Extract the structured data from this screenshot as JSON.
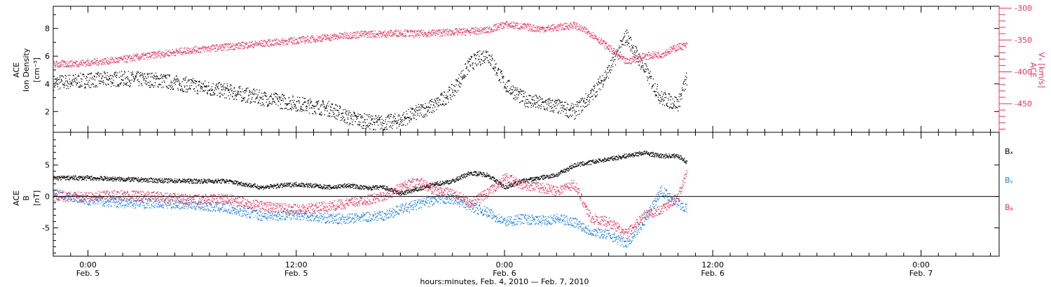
{
  "chart_data": [
    {
      "panel": "ion-density-and-velocity",
      "type": "scatter",
      "title": "",
      "ylabel_left": [
        "ACE",
        "Ion Density",
        "[cm⁻³]"
      ],
      "ylabel_right": [
        "ACE",
        "Vₓ [km/s]"
      ],
      "ylim_left": [
        0.5,
        9.6
      ],
      "yticks_left": [
        2,
        4,
        6,
        8
      ],
      "ylim_right": [
        -495,
        -297
      ],
      "yticks_right": [
        -300,
        -350,
        -400,
        -450
      ],
      "grid": false,
      "series": [
        {
          "name": "",
          "axis": "left",
          "color": "#000000",
          "x": [
            -4,
            0,
            4,
            8,
            12,
            16,
            20,
            24,
            28,
            30,
            32,
            34,
            36,
            38,
            40,
            42,
            44,
            46,
            48,
            50,
            52,
            54,
            56,
            58,
            60,
            62,
            64,
            66,
            68,
            69
          ],
          "y": [
            4.1,
            4.3,
            4.4,
            4.3,
            3.9,
            3.5,
            3.0,
            2.6,
            2.2,
            1.6,
            1.3,
            1.2,
            1.4,
            2.0,
            2.5,
            3.5,
            5.5,
            6.2,
            4.0,
            3.0,
            2.6,
            2.4,
            2.0,
            3.2,
            5.0,
            7.5,
            5.2,
            3.0,
            2.6,
            4.5
          ]
        },
        {
          "name": "",
          "axis": "right",
          "color": "#e0335a",
          "x": [
            -4,
            0,
            4,
            8,
            12,
            16,
            20,
            24,
            28,
            30,
            32,
            34,
            36,
            38,
            40,
            42,
            44,
            46,
            48,
            50,
            52,
            54,
            56,
            58,
            60,
            62,
            64,
            66,
            68,
            69
          ],
          "y": [
            -388,
            -385,
            -380,
            -372,
            -365,
            -360,
            -355,
            -350,
            -345,
            -342,
            -340,
            -340,
            -338,
            -340,
            -338,
            -337,
            -336,
            -334,
            -325,
            -328,
            -332,
            -330,
            -326,
            -340,
            -362,
            -384,
            -375,
            -372,
            -360,
            -358
          ]
        }
      ]
    },
    {
      "panel": "magnetic-field-components",
      "type": "scatter",
      "title": "",
      "ylabel": [
        "ACE",
        "B",
        "[nT]"
      ],
      "ylim": [
        -9.5,
        10.2
      ],
      "yticks": [
        5,
        0,
        -5
      ],
      "zero_line": true,
      "grid": false,
      "x": [
        -4,
        0,
        4,
        8,
        12,
        16,
        20,
        24,
        28,
        30,
        32,
        34,
        36,
        38,
        40,
        42,
        44,
        46,
        48,
        50,
        52,
        54,
        56,
        58,
        60,
        62,
        64,
        66,
        68,
        69
      ],
      "series": [
        {
          "name": "Bₓ",
          "color": "#000000",
          "values": [
            3.0,
            3.0,
            2.8,
            2.6,
            2.5,
            2.5,
            1.5,
            2.0,
            1.5,
            1.8,
            1.4,
            1.5,
            0.5,
            1.2,
            2.0,
            2.5,
            3.8,
            3.5,
            1.5,
            2.5,
            3.0,
            3.5,
            5.0,
            5.5,
            6.0,
            6.5,
            7.0,
            6.5,
            6.5,
            5.5
          ]
        },
        {
          "name": "Bᵧ",
          "color": "#1f7fd6",
          "values": [
            0.5,
            -0.5,
            -1.0,
            -1.0,
            -1.2,
            -1.8,
            -3.0,
            -2.8,
            -3.5,
            -3.5,
            -3.2,
            -3.0,
            -2.0,
            -1.2,
            -0.5,
            -0.3,
            -1.5,
            -2.5,
            -4.0,
            -3.5,
            -3.8,
            -3.5,
            -4.0,
            -5.5,
            -6.0,
            -7.5,
            -4.0,
            1.0,
            -1.0,
            -2.0
          ]
        },
        {
          "name": "Bᵩ",
          "color": "#e0335a",
          "values": [
            0.0,
            0.0,
            0.3,
            0.0,
            -0.5,
            -0.3,
            -1.5,
            -2.0,
            -1.5,
            -1.0,
            -0.5,
            0.0,
            1.5,
            2.5,
            1.0,
            0.5,
            -1.0,
            0.5,
            3.0,
            2.0,
            1.5,
            1.0,
            2.0,
            -3.5,
            -4.0,
            -6.0,
            -3.0,
            -2.0,
            0.0,
            4.0
          ]
        }
      ]
    }
  ],
  "time_axis": {
    "xlim": [
      -4,
      105
    ],
    "major_ticks": [
      {
        "t": 0,
        "time": "0:00",
        "date": "Feb. 5"
      },
      {
        "t": 24,
        "time": "12:00",
        "date": "Feb. 5"
      },
      {
        "t": 48,
        "time": "0:00",
        "date": "Feb. 6"
      },
      {
        "t": 72,
        "time": "12:00",
        "date": "Feb. 6"
      },
      {
        "t": 96,
        "time": "0:00",
        "date": "Feb. 7"
      }
    ],
    "minor_tick_step": 2,
    "title": "hours:minutes, Feb.  4, 2010 — Feb.  7, 2010"
  }
}
